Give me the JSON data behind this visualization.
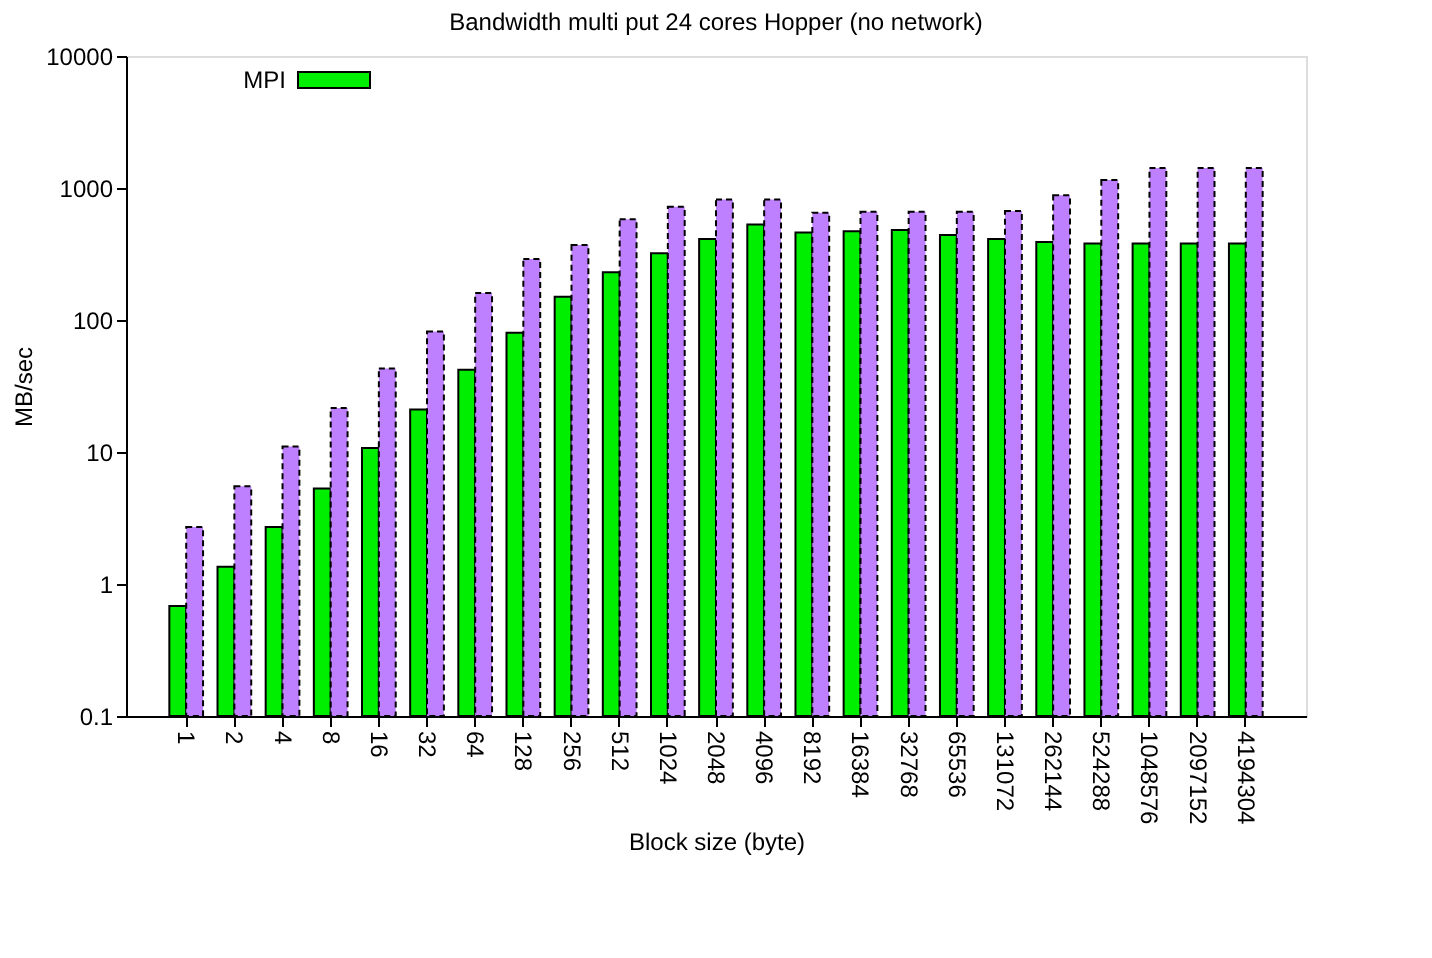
{
  "chart_data": {
    "type": "bar",
    "title": "Bandwidth multi put 24 cores Hopper (no network)",
    "xlabel": "Block size (byte)",
    "ylabel": "MB/sec",
    "categories": [
      "1",
      "2",
      "4",
      "8",
      "16",
      "32",
      "64",
      "128",
      "256",
      "512",
      "1024",
      "2048",
      "4096",
      "8192",
      "16384",
      "32768",
      "65536",
      "131072",
      "262144",
      "524288",
      "1048576",
      "2097152",
      "4194304"
    ],
    "series": [
      {
        "name": "MPI",
        "color": "#00ee00",
        "line_style": "solid",
        "values": [
          0.68,
          1.35,
          2.7,
          5.3,
          10.7,
          21,
          42,
          80,
          150,
          230,
          320,
          410,
          530,
          460,
          470,
          480,
          440,
          410,
          390,
          380,
          380,
          380,
          380
        ]
      },
      {
        "color": "#bf80ff",
        "line_style": "dashed",
        "values": [
          2.7,
          5.5,
          11,
          21.5,
          43,
          82,
          160,
          290,
          370,
          580,
          720,
          820,
          820,
          650,
          660,
          660,
          660,
          670,
          880,
          1150,
          1420,
          1420,
          1420
        ]
      }
    ],
    "log": true,
    "ylim": [
      0.1,
      10000
    ],
    "yticks": [
      0.1,
      1,
      10,
      100,
      1000,
      10000
    ],
    "grid": false,
    "legend": "top left"
  }
}
